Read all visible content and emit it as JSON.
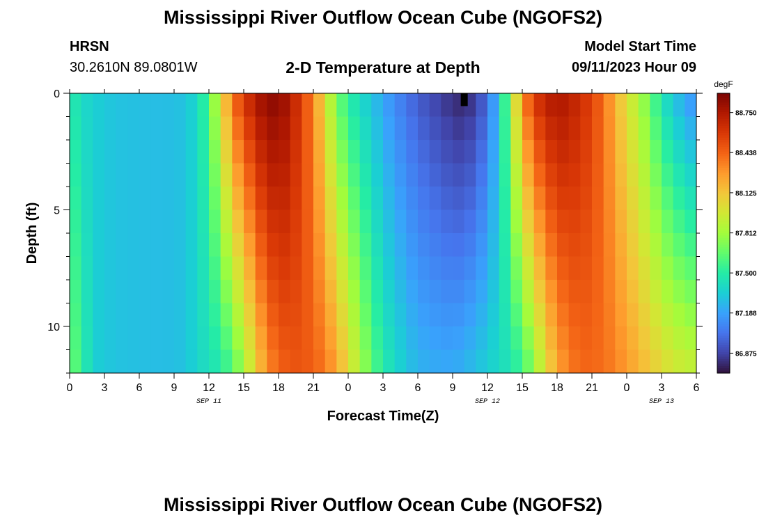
{
  "page": {
    "title_top": "Mississippi River Outflow Ocean Cube (NGOFS2)",
    "title_bottom": "Mississippi River Outflow Ocean Cube (NGOFS2)",
    "station_name": "HRSN",
    "station_coords": "30.2610N  89.0801W",
    "plot_title": "2-D Temperature at Depth",
    "model_start_label": "Model Start Time",
    "model_start_value": "09/11/2023 Hour 09"
  },
  "colors": {
    "background": "#ffffff",
    "colormap": [
      "#30123b",
      "#4145ab",
      "#4675ed",
      "#39a2fc",
      "#1bcfd4",
      "#24eca6",
      "#61fc6c",
      "#a4fc3b",
      "#d1e834",
      "#f3c63a",
      "#fe9b2d",
      "#f36315",
      "#d93806",
      "#b11901",
      "#7a0403"
    ]
  },
  "chart_data": {
    "type": "heatmap",
    "title": "2-D Temperature at Depth",
    "xlabel": "Forecast Time(Z)",
    "ylabel": "Depth (ft)",
    "x_ticks": [
      "0",
      "3",
      "6",
      "9",
      "12",
      "15",
      "18",
      "21",
      "0",
      "3",
      "6",
      "9",
      "12",
      "15",
      "18",
      "21",
      "0",
      "3",
      "6"
    ],
    "x_tick_hours": [
      0,
      3,
      6,
      9,
      12,
      15,
      18,
      21,
      24,
      27,
      30,
      33,
      36,
      39,
      42,
      45,
      48,
      51,
      54
    ],
    "xlim": [
      0,
      54
    ],
    "date_labels": [
      {
        "text": "SEP 11",
        "hour": 12
      },
      {
        "text": "SEP 12",
        "hour": 36
      },
      {
        "text": "SEP 13",
        "hour": 51
      }
    ],
    "y_ticks": [
      "0",
      "5",
      "10"
    ],
    "y_tick_values": [
      0,
      5,
      10
    ],
    "ylim": [
      0,
      12
    ],
    "y_inverted": true,
    "colorbar": {
      "units": "degF",
      "tick_labels": [
        "88.750",
        "88.438",
        "88.125",
        "87.812",
        "87.500",
        "87.188",
        "86.875"
      ],
      "tick_values": [
        88.75,
        88.438,
        88.125,
        87.812,
        87.5,
        87.188,
        86.875
      ],
      "range": [
        86.72,
        88.9
      ]
    },
    "time_step_hours": 1,
    "depth_levels": [
      0.5,
      1.5,
      2.5,
      3.5,
      4.5,
      5.5,
      6.5,
      7.5,
      8.5,
      9.5,
      10.5,
      11.5
    ],
    "series": [
      {
        "hour": 0,
        "surface": 87.5,
        "bottom": 87.7
      },
      {
        "hour": 1,
        "surface": 87.4,
        "bottom": 87.55
      },
      {
        "hour": 2,
        "surface": 87.35,
        "bottom": 87.35
      },
      {
        "hour": 4,
        "surface": 87.3,
        "bottom": 87.3
      },
      {
        "hour": 8,
        "surface": 87.28,
        "bottom": 87.28
      },
      {
        "hour": 10,
        "surface": 87.3,
        "bottom": 87.3
      },
      {
        "hour": 11,
        "surface": 87.4,
        "bottom": 87.38
      },
      {
        "hour": 12,
        "surface": 87.6,
        "bottom": 87.42
      },
      {
        "hour": 13,
        "surface": 88.0,
        "bottom": 87.48
      },
      {
        "hour": 14,
        "surface": 88.4,
        "bottom": 87.6
      },
      {
        "hour": 15,
        "surface": 88.6,
        "bottom": 87.8
      },
      {
        "hour": 16,
        "surface": 88.75,
        "bottom": 88.05
      },
      {
        "hour": 17,
        "surface": 88.85,
        "bottom": 88.3
      },
      {
        "hour": 18,
        "surface": 88.85,
        "bottom": 88.42
      },
      {
        "hour": 19,
        "surface": 88.75,
        "bottom": 88.48
      },
      {
        "hour": 20,
        "surface": 88.55,
        "bottom": 88.48
      },
      {
        "hour": 21,
        "surface": 88.35,
        "bottom": 88.45
      },
      {
        "hour": 22,
        "surface": 88.0,
        "bottom": 88.38
      },
      {
        "hour": 23,
        "surface": 87.7,
        "bottom": 88.25
      },
      {
        "hour": 24,
        "surface": 87.5,
        "bottom": 88.05
      },
      {
        "hour": 25,
        "surface": 87.4,
        "bottom": 87.85
      },
      {
        "hour": 26,
        "surface": 87.3,
        "bottom": 87.65
      },
      {
        "hour": 27,
        "surface": 87.2,
        "bottom": 87.5
      },
      {
        "hour": 28,
        "surface": 87.1,
        "bottom": 87.4
      },
      {
        "hour": 30,
        "surface": 86.95,
        "bottom": 87.25
      },
      {
        "hour": 32,
        "surface": 86.85,
        "bottom": 87.22
      },
      {
        "hour": 33,
        "surface": 86.8,
        "bottom": 87.22
      },
      {
        "hour": 34,
        "surface": 86.78,
        "bottom": 87.25
      },
      {
        "hour": 35,
        "surface": 86.85,
        "bottom": 87.3
      },
      {
        "hour": 36,
        "surface": 87.0,
        "bottom": 87.35
      },
      {
        "hour": 37,
        "surface": 87.3,
        "bottom": 87.4
      },
      {
        "hour": 38,
        "surface": 87.8,
        "bottom": 87.45
      },
      {
        "hour": 39,
        "surface": 88.3,
        "bottom": 87.55
      },
      {
        "hour": 40,
        "surface": 88.6,
        "bottom": 87.75
      },
      {
        "hour": 41,
        "surface": 88.7,
        "bottom": 88.0
      },
      {
        "hour": 42,
        "surface": 88.78,
        "bottom": 88.22
      },
      {
        "hour": 43,
        "surface": 88.72,
        "bottom": 88.35
      },
      {
        "hour": 44,
        "surface": 88.65,
        "bottom": 88.42
      },
      {
        "hour": 45,
        "surface": 88.55,
        "bottom": 88.42
      },
      {
        "hour": 46,
        "surface": 88.4,
        "bottom": 88.4
      },
      {
        "hour": 47,
        "surface": 88.2,
        "bottom": 88.35
      },
      {
        "hour": 48,
        "surface": 88.0,
        "bottom": 88.28
      },
      {
        "hour": 49,
        "surface": 87.85,
        "bottom": 88.2
      },
      {
        "hour": 50,
        "surface": 87.65,
        "bottom": 88.12
      },
      {
        "hour": 51,
        "surface": 87.45,
        "bottom": 88.05
      },
      {
        "hour": 52,
        "surface": 87.3,
        "bottom": 87.98
      },
      {
        "hour": 53,
        "surface": 87.2,
        "bottom": 87.95
      },
      {
        "hour": 54,
        "surface": 87.1,
        "bottom": 87.92
      }
    ],
    "missing_cells": [
      {
        "hour": 34,
        "depth": 0.5
      }
    ]
  }
}
